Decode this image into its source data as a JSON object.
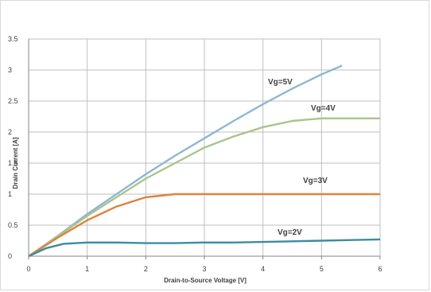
{
  "chart_data": {
    "type": "line",
    "title": "",
    "xlabel": "Drain-to-Source Voltage [V]",
    "ylabel": "Drain Current [A]",
    "xlim": [
      0,
      6
    ],
    "ylim": [
      0,
      3.5
    ],
    "x_ticks": [
      "0",
      "1",
      "2",
      "3",
      "4",
      "5",
      "6"
    ],
    "y_ticks": [
      "0",
      "0.5",
      "1",
      "1.5",
      "2",
      "2.5",
      "3",
      "3.5"
    ],
    "grid": true,
    "legend": "none",
    "series": [
      {
        "name": "Vg=5V",
        "color": "#8db8d2",
        "points": [
          [
            0,
            0
          ],
          [
            0.5,
            0.33
          ],
          [
            1,
            0.68
          ],
          [
            1.5,
            1.0
          ],
          [
            2,
            1.32
          ],
          [
            2.5,
            1.62
          ],
          [
            3,
            1.9
          ],
          [
            3.5,
            2.18
          ],
          [
            4,
            2.45
          ],
          [
            4.5,
            2.7
          ],
          [
            5,
            2.93
          ],
          [
            5.35,
            3.07
          ]
        ]
      },
      {
        "name": "Vg=4V",
        "color": "#aac48c",
        "points": [
          [
            0,
            0
          ],
          [
            0.5,
            0.32
          ],
          [
            1,
            0.65
          ],
          [
            1.5,
            0.95
          ],
          [
            2,
            1.25
          ],
          [
            2.5,
            1.5
          ],
          [
            3,
            1.75
          ],
          [
            3.5,
            1.93
          ],
          [
            4,
            2.08
          ],
          [
            4.5,
            2.18
          ],
          [
            5,
            2.22
          ],
          [
            5.5,
            2.22
          ],
          [
            6,
            2.22
          ]
        ]
      },
      {
        "name": "Vg=3V",
        "color": "#e0823c",
        "points": [
          [
            0,
            0
          ],
          [
            0.5,
            0.3
          ],
          [
            1,
            0.58
          ],
          [
            1.5,
            0.8
          ],
          [
            2,
            0.95
          ],
          [
            2.5,
            1.0
          ],
          [
            3,
            1.0
          ],
          [
            3.5,
            1.0
          ],
          [
            4,
            1.0
          ],
          [
            4.5,
            1.0
          ],
          [
            5,
            1.0
          ],
          [
            5.5,
            1.0
          ],
          [
            6,
            1.0
          ]
        ]
      },
      {
        "name": "Vg=2V",
        "color": "#3a8ca2",
        "points": [
          [
            0,
            0
          ],
          [
            0.3,
            0.13
          ],
          [
            0.6,
            0.2
          ],
          [
            1,
            0.22
          ],
          [
            1.5,
            0.22
          ],
          [
            2,
            0.21
          ],
          [
            2.5,
            0.21
          ],
          [
            3,
            0.22
          ],
          [
            3.5,
            0.22
          ],
          [
            4,
            0.23
          ],
          [
            4.5,
            0.24
          ],
          [
            5,
            0.25
          ],
          [
            5.5,
            0.26
          ],
          [
            6,
            0.27
          ]
        ]
      }
    ]
  }
}
